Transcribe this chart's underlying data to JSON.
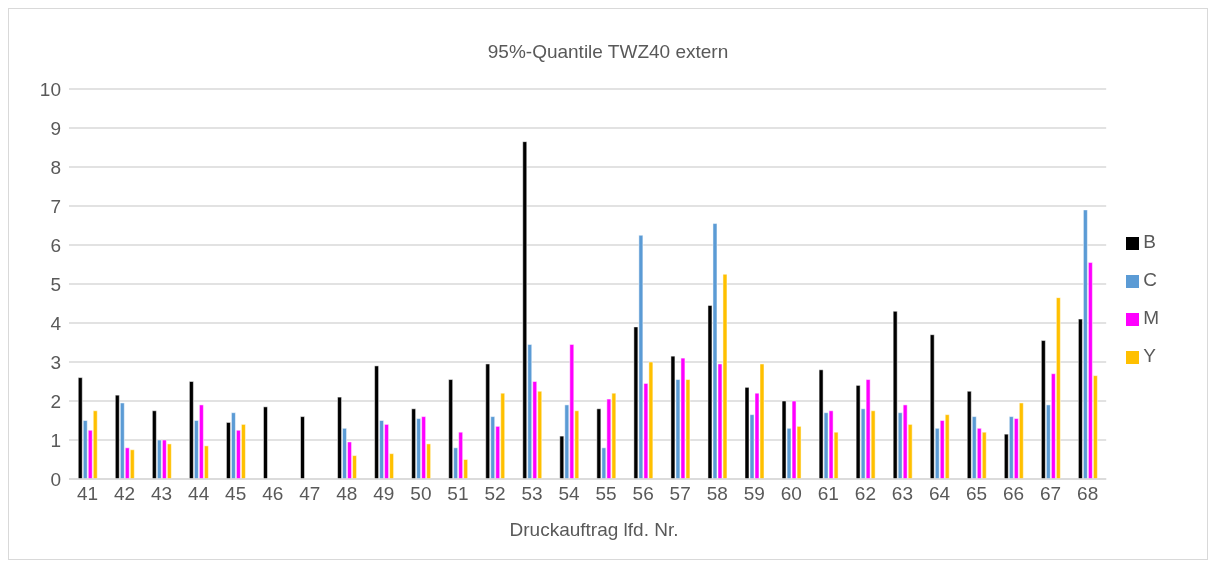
{
  "chart_data": {
    "type": "bar",
    "title": "95%-Quantile TWZ40 extern",
    "xlabel": "Druckauftrag lfd. Nr.",
    "categories": [
      "41",
      "42",
      "43",
      "44",
      "45",
      "46",
      "47",
      "48",
      "49",
      "50",
      "51",
      "52",
      "53",
      "54",
      "55",
      "56",
      "57",
      "58",
      "59",
      "60",
      "61",
      "62",
      "63",
      "64",
      "65",
      "66",
      "67",
      "68"
    ],
    "series": [
      {
        "name": "B",
        "color": "#000000",
        "values": [
          2.6,
          2.15,
          1.75,
          2.5,
          1.45,
          1.85,
          1.6,
          2.1,
          2.9,
          1.8,
          2.55,
          2.95,
          8.65,
          1.1,
          1.8,
          3.9,
          3.15,
          4.45,
          2.35,
          2.0,
          2.8,
          2.4,
          4.3,
          3.7,
          2.25,
          1.15,
          3.55,
          4.1
        ]
      },
      {
        "name": "C",
        "color": "#5b9bd5",
        "values": [
          1.5,
          1.95,
          1.0,
          1.5,
          1.7,
          null,
          null,
          1.3,
          1.5,
          1.55,
          0.8,
          1.6,
          3.45,
          1.9,
          0.8,
          6.25,
          2.55,
          6.55,
          1.65,
          1.3,
          1.7,
          1.8,
          1.7,
          1.3,
          1.6,
          1.6,
          1.9,
          6.9
        ]
      },
      {
        "name": "M",
        "color": "#ff00ff",
        "values": [
          1.25,
          0.8,
          1.0,
          1.9,
          1.25,
          null,
          null,
          0.95,
          1.4,
          1.6,
          1.2,
          1.35,
          2.5,
          3.45,
          2.05,
          2.45,
          3.1,
          2.95,
          2.2,
          2.0,
          1.75,
          2.55,
          1.9,
          1.5,
          1.3,
          1.55,
          2.7,
          5.55
        ]
      },
      {
        "name": "Y",
        "color": "#ffc000",
        "values": [
          1.75,
          0.75,
          0.9,
          0.85,
          1.4,
          null,
          null,
          0.6,
          0.65,
          0.9,
          0.5,
          2.2,
          2.25,
          1.75,
          2.2,
          3.0,
          2.55,
          5.25,
          2.95,
          1.35,
          1.2,
          1.75,
          1.4,
          1.65,
          1.2,
          1.95,
          4.65,
          2.65
        ]
      }
    ],
    "ylim": [
      0,
      10
    ],
    "yticks": [
      0,
      1,
      2,
      3,
      4,
      5,
      6,
      7,
      8,
      9,
      10
    ],
    "grid": "y",
    "legend": "right"
  }
}
